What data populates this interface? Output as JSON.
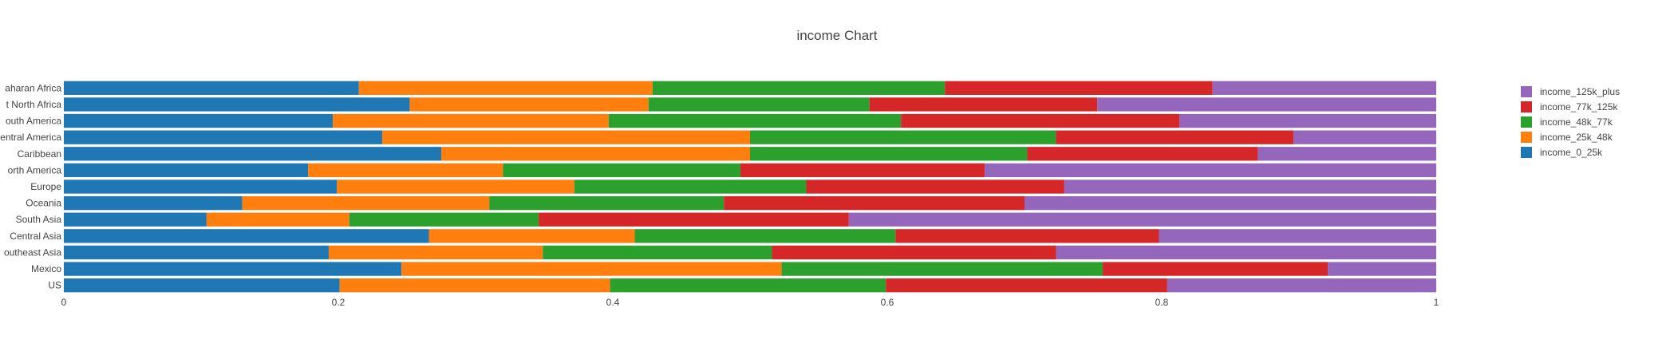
{
  "chart_data": {
    "type": "bar",
    "orientation": "horizontal",
    "stacked": true,
    "title": "income Chart",
    "xlabel": "",
    "ylabel": "",
    "xlim": [
      0,
      1
    ],
    "x_ticks": [
      "0",
      "0.2",
      "0.4",
      "0.6",
      "0.8",
      "1"
    ],
    "grid": false,
    "legend_position": "right",
    "categories": [
      "US",
      "Mexico",
      "Southeast Asia",
      "Central Asia",
      "South Asia",
      "Oceania",
      "Europe",
      "North America",
      "Caribbean",
      "Central America",
      "South America",
      "East North Africa",
      "Sub-Saharan Africa"
    ],
    "category_labels_shown": [
      "US",
      "Mexico",
      "outheast Asia",
      "Central Asia",
      "South Asia",
      "Oceania",
      "Europe",
      "orth America",
      "Caribbean",
      "entral America",
      "outh America",
      "t North Africa",
      "aharan Africa"
    ],
    "series": [
      {
        "name": "income_0_25k",
        "color": "#1f77b4",
        "values": [
          0.201,
          0.246,
          0.193,
          0.266,
          0.104,
          0.13,
          0.199,
          0.178,
          0.275,
          0.232,
          0.196,
          0.252,
          0.215
        ]
      },
      {
        "name": "income_25k_48k",
        "color": "#ff7f0e",
        "values": [
          0.197,
          0.277,
          0.156,
          0.15,
          0.104,
          0.18,
          0.173,
          0.142,
          0.225,
          0.268,
          0.201,
          0.174,
          0.214
        ]
      },
      {
        "name": "income_48k_77k",
        "color": "#2ca02c",
        "values": [
          0.201,
          0.234,
          0.167,
          0.19,
          0.138,
          0.171,
          0.169,
          0.173,
          0.202,
          0.223,
          0.213,
          0.161,
          0.213
        ]
      },
      {
        "name": "income_77k_125k",
        "color": "#d62728",
        "values": [
          0.205,
          0.164,
          0.207,
          0.192,
          0.226,
          0.219,
          0.188,
          0.178,
          0.168,
          0.173,
          0.203,
          0.166,
          0.195
        ]
      },
      {
        "name": "income_125k_plus",
        "color": "#9467bd",
        "values": [
          0.196,
          0.079,
          0.277,
          0.202,
          0.428,
          0.3,
          0.271,
          0.329,
          0.13,
          0.104,
          0.187,
          0.247,
          0.163
        ]
      }
    ],
    "legend_order": [
      "income_125k_plus",
      "income_77k_125k",
      "income_48k_77k",
      "income_25k_48k",
      "income_0_25k"
    ]
  }
}
